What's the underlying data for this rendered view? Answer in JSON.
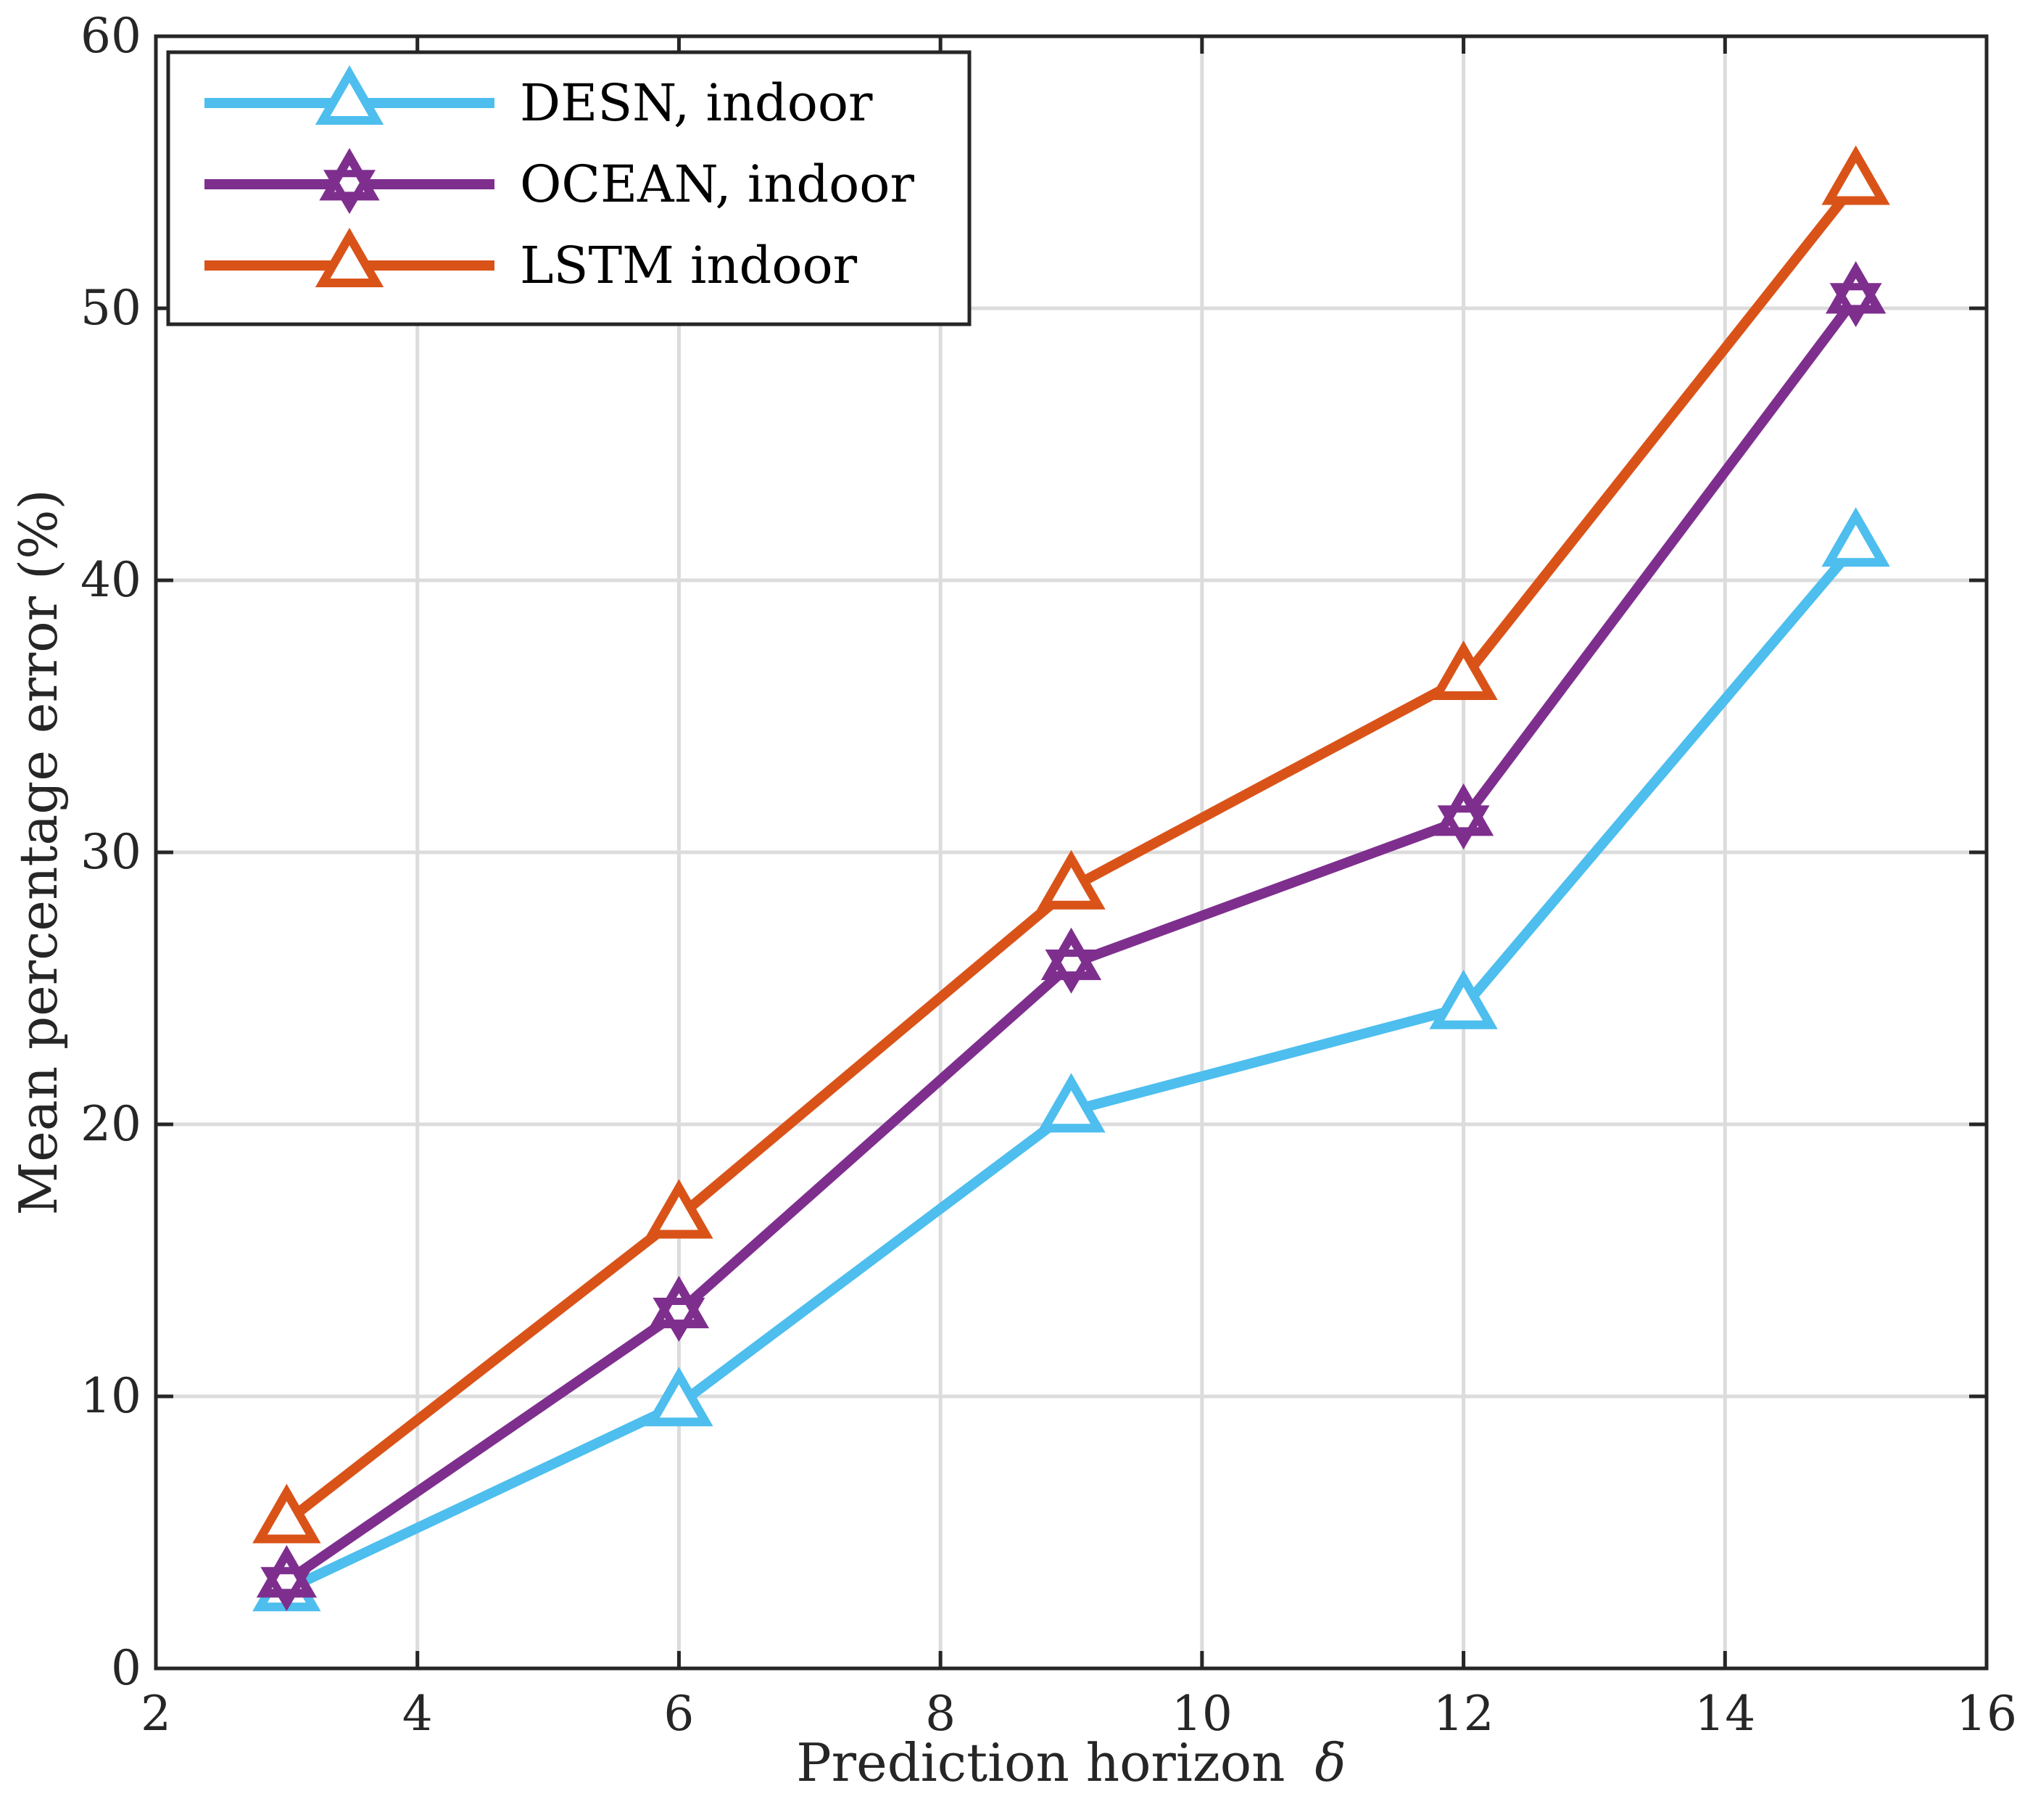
{
  "chart_data": {
    "type": "line",
    "title": "",
    "xlabel": "Prediction horizon",
    "xlabel_symbol": "δ",
    "ylabel": "Mean percentage error (%)",
    "xlim": [
      2,
      16
    ],
    "ylim": [
      0,
      60
    ],
    "xticks": [
      2,
      4,
      6,
      8,
      10,
      12,
      14,
      16
    ],
    "yticks": [
      0,
      10,
      20,
      30,
      40,
      50,
      60
    ],
    "grid": true,
    "legend_position": "top-left",
    "x": [
      3,
      6,
      9,
      12,
      15
    ],
    "series": [
      {
        "name": "DESN, indoor",
        "color": "#4DBEEE",
        "marker": "triangle",
        "values": [
          2.9,
          9.7,
          20.5,
          24.3,
          41.3
        ]
      },
      {
        "name": "OCEAN, indoor",
        "color": "#7E2F8E",
        "marker": "hexagram",
        "values": [
          3.2,
          13.1,
          25.9,
          31.2,
          50.4
        ]
      },
      {
        "name": "LSTM indoor",
        "color": "#D95319",
        "marker": "triangle",
        "values": [
          5.4,
          16.6,
          28.7,
          36.4,
          54.6
        ]
      }
    ]
  }
}
